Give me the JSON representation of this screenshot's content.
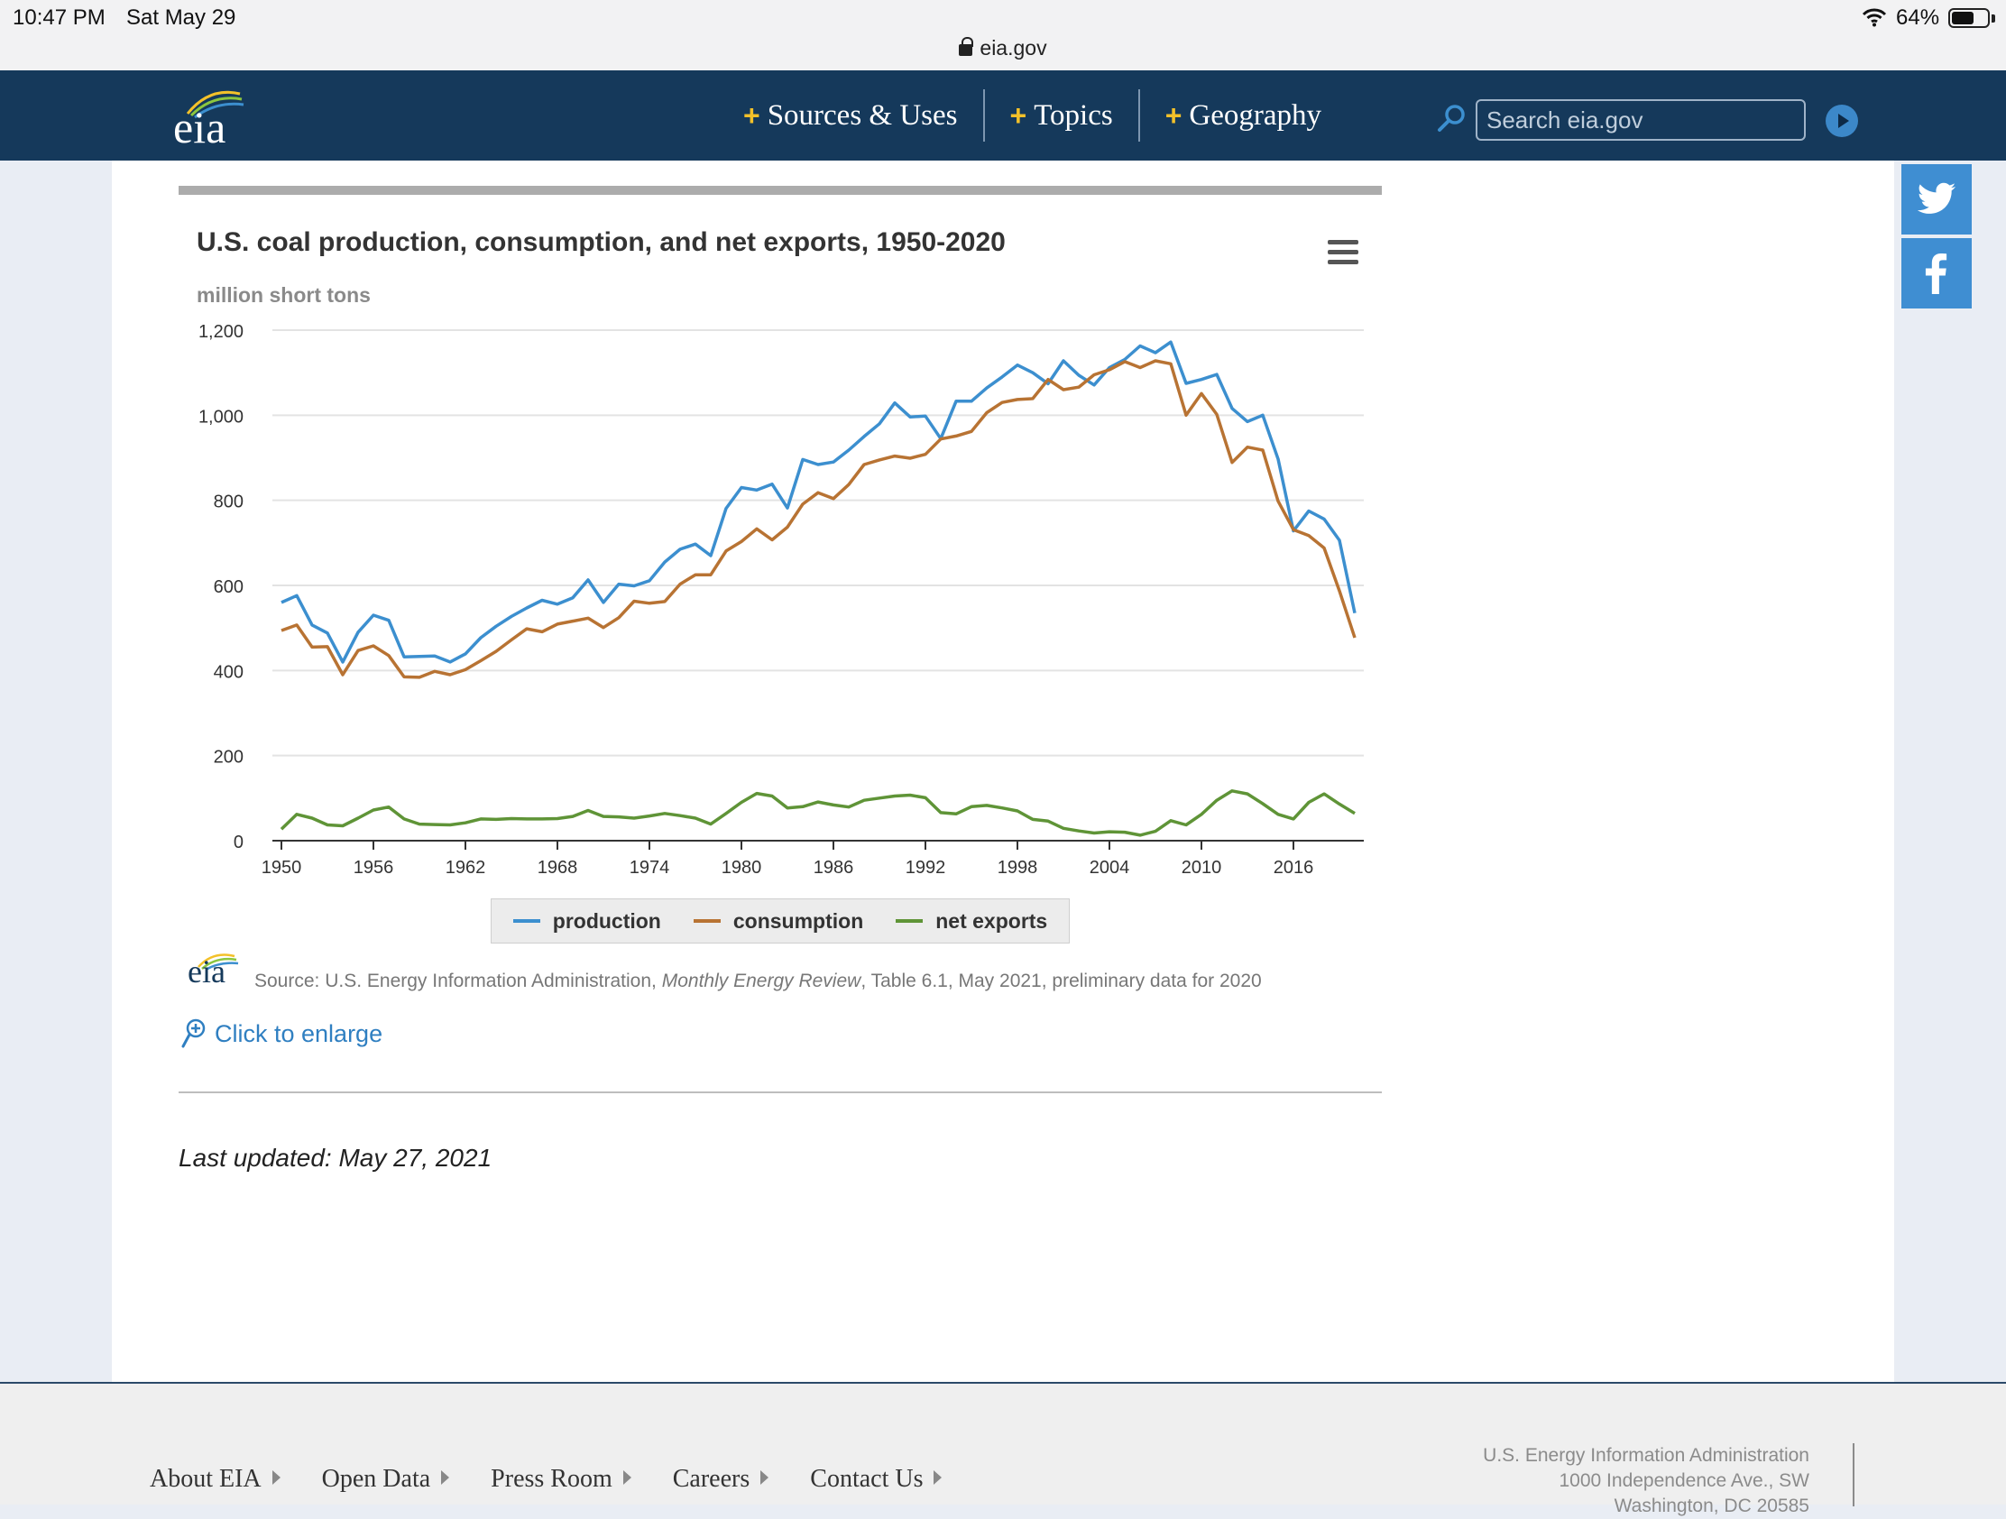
{
  "status_bar": {
    "time": "10:47 PM",
    "date": "Sat May 29",
    "url": "eia.gov",
    "battery": "64%",
    "battery_level": 0.64
  },
  "header": {
    "logo_text": "eia",
    "nav": [
      {
        "label": "Sources & Uses"
      },
      {
        "label": "Topics"
      },
      {
        "label": "Geography"
      }
    ],
    "search_placeholder": "Search eia.gov"
  },
  "colors": {
    "header_bg": "#15395b",
    "accent_plus": "#f3c12a",
    "production": "#3c8fcf",
    "consumption": "#b87333",
    "net_exports": "#5f9437"
  },
  "social": [
    {
      "name": "twitter",
      "icon": "twitter-icon"
    },
    {
      "name": "facebook",
      "icon": "facebook-icon"
    }
  ],
  "chart": {
    "title": "U.S. coal production, consumption, and net exports, 1950-2020",
    "units": "million short tons",
    "legend": [
      "production",
      "consumption",
      "net exports"
    ],
    "source_logo": "eia",
    "source_prefix": "Source: U.S. Energy Information Administration, ",
    "source_italic": "Monthly Energy Review",
    "source_suffix": ", Table 6.1, May 2021, preliminary data for 2020",
    "enlarge_label": "Click to enlarge"
  },
  "chart_data": {
    "type": "line",
    "title": "U.S. coal production, consumption, and net exports, 1950-2020",
    "ylabel": "million short tons",
    "ylim": [
      0,
      1200
    ],
    "yticks": [
      0,
      200,
      400,
      600,
      800,
      1000,
      1200
    ],
    "xlim": [
      1950,
      2020
    ],
    "xticks": [
      1950,
      1956,
      1962,
      1968,
      1974,
      1980,
      1986,
      1992,
      1998,
      2004,
      2010,
      2016
    ],
    "grid": true,
    "legend_position": "bottom",
    "x": [
      1950,
      1951,
      1952,
      1953,
      1954,
      1955,
      1956,
      1957,
      1958,
      1959,
      1960,
      1961,
      1962,
      1963,
      1964,
      1965,
      1966,
      1967,
      1968,
      1969,
      1970,
      1971,
      1972,
      1973,
      1974,
      1975,
      1976,
      1977,
      1978,
      1979,
      1980,
      1981,
      1982,
      1983,
      1984,
      1985,
      1986,
      1987,
      1988,
      1989,
      1990,
      1991,
      1992,
      1993,
      1994,
      1995,
      1996,
      1997,
      1998,
      1999,
      2000,
      2001,
      2002,
      2003,
      2004,
      2005,
      2006,
      2007,
      2008,
      2009,
      2010,
      2011,
      2012,
      2013,
      2014,
      2015,
      2016,
      2017,
      2018,
      2019,
      2020
    ],
    "series": [
      {
        "name": "production",
        "values": [
          560,
          576,
          507,
          488,
          420,
          490,
          530,
          518,
          432,
          433,
          434,
          420,
          439,
          477,
          504,
          527,
          547,
          565,
          556,
          571,
          613,
          560,
          603,
          599,
          611,
          655,
          685,
          697,
          670,
          781,
          830,
          824,
          838,
          782,
          896,
          884,
          890,
          918,
          950,
          980,
          1029,
          996,
          998,
          945,
          1033,
          1033,
          1064,
          1090,
          1118,
          1100,
          1074,
          1128,
          1094,
          1071,
          1112,
          1131,
          1163,
          1147,
          1172,
          1075,
          1084,
          1096,
          1016,
          985,
          1000,
          897,
          728,
          775,
          756,
          706,
          535
        ]
      },
      {
        "name": "consumption",
        "values": [
          494,
          507,
          455,
          456,
          390,
          447,
          458,
          435,
          385,
          384,
          398,
          390,
          402,
          423,
          445,
          472,
          498,
          491,
          509,
          516,
          523,
          501,
          524,
          563,
          558,
          562,
          603,
          625,
          625,
          681,
          703,
          733,
          707,
          737,
          791,
          818,
          804,
          837,
          884,
          895,
          904,
          899,
          908,
          944,
          951,
          962,
          1006,
          1030,
          1037,
          1039,
          1084,
          1060,
          1066,
          1095,
          1107,
          1126,
          1112,
          1128,
          1121,
          1000,
          1051,
          1002,
          889,
          925,
          918,
          798,
          731,
          717,
          688,
          587,
          477
        ]
      },
      {
        "name": "net exports",
        "values": [
          27,
          62,
          53,
          37,
          35,
          53,
          72,
          79,
          51,
          39,
          38,
          37,
          42,
          51,
          50,
          52,
          51,
          51,
          52,
          57,
          71,
          57,
          56,
          53,
          58,
          64,
          59,
          53,
          39,
          64,
          90,
          111,
          105,
          77,
          80,
          91,
          84,
          79,
          95,
          100,
          105,
          107,
          101,
          66,
          63,
          80,
          83,
          77,
          70,
          50,
          46,
          29,
          23,
          18,
          21,
          20,
          13,
          22,
          47,
          37,
          62,
          95,
          117,
          110,
          87,
          62,
          51,
          90,
          110,
          86,
          64
        ]
      }
    ]
  },
  "last_updated": "Last updated: May 27, 2021",
  "footer": {
    "links": [
      "About EIA",
      "Open Data",
      "Press Room",
      "Careers",
      "Contact Us"
    ],
    "address_lines": [
      "U.S. Energy Information Administration",
      "1000 Independence Ave., SW",
      "Washington, DC 20585"
    ]
  }
}
